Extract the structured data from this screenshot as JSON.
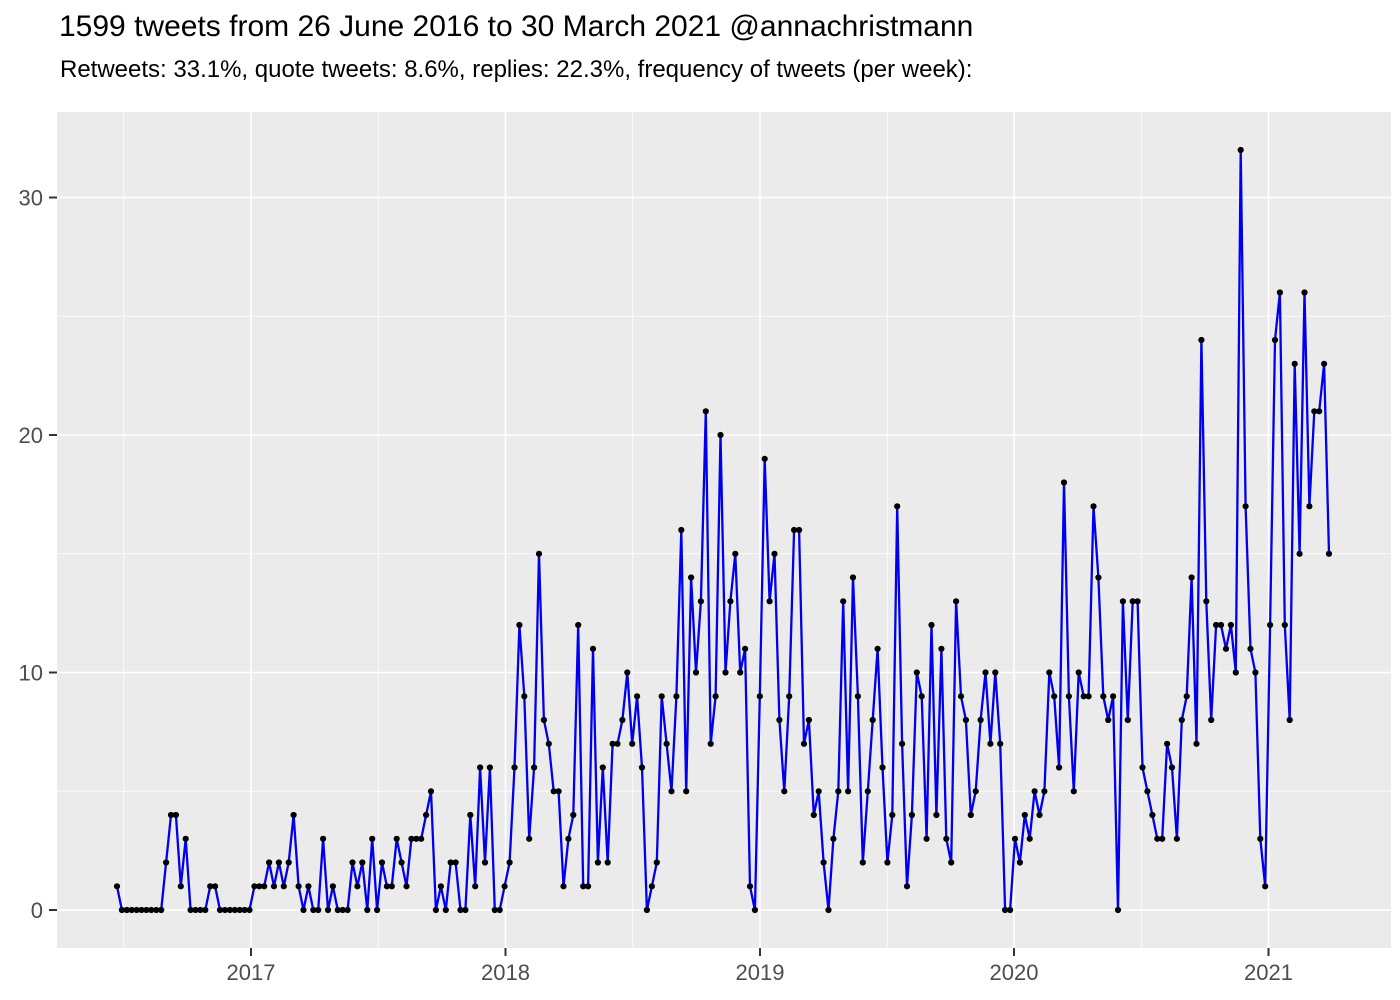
{
  "header": {
    "title": "1599 tweets from 26 June 2016 to 30 March 2021 @annachristmann",
    "subtitle": "Retweets: 33.1%, quote tweets: 8.6%, replies: 22.3%, frequency of tweets (per week):"
  },
  "chart_data": {
    "type": "line",
    "title": "1599 tweets from 26 June 2016 to 30 March 2021 @annachristmann",
    "subtitle": "Retweets: 33.1%, quote tweets: 8.6%, replies: 22.3%, frequency of tweets (per week):",
    "xlabel": "",
    "ylabel": "",
    "x_start_date": "26 June 2016",
    "x_end_date": "30 March 2021",
    "x_tick_labels": [
      "2017",
      "2018",
      "2019",
      "2020",
      "2021"
    ],
    "y_ticks": [
      0,
      10,
      20,
      30
    ],
    "y_minor_ticks": [
      5,
      15,
      25
    ],
    "ylim": [
      -1.6,
      33.6
    ],
    "grid": "on",
    "legend_position": "none",
    "series": [
      {
        "name": "tweets per week",
        "values": [
          1,
          0,
          0,
          0,
          0,
          0,
          0,
          0,
          0,
          0,
          2,
          4,
          4,
          1,
          3,
          0,
          0,
          0,
          0,
          1,
          1,
          0,
          0,
          0,
          0,
          0,
          0,
          0,
          1,
          1,
          1,
          2,
          1,
          2,
          1,
          2,
          4,
          1,
          0,
          1,
          0,
          0,
          3,
          0,
          1,
          0,
          0,
          0,
          2,
          1,
          2,
          0,
          3,
          0,
          2,
          1,
          1,
          3,
          2,
          1,
          3,
          3,
          3,
          4,
          5,
          0,
          1,
          0,
          2,
          2,
          0,
          0,
          4,
          1,
          6,
          2,
          6,
          0,
          0,
          1,
          2,
          6,
          12,
          9,
          3,
          6,
          15,
          8,
          7,
          5,
          5,
          1,
          3,
          4,
          12,
          1,
          1,
          11,
          2,
          6,
          2,
          7,
          7,
          8,
          10,
          7,
          9,
          6,
          0,
          1,
          2,
          9,
          7,
          5,
          9,
          16,
          5,
          14,
          10,
          13,
          21,
          7,
          9,
          20,
          10,
          13,
          15,
          10,
          11,
          1,
          0,
          9,
          19,
          13,
          15,
          8,
          5,
          9,
          16,
          16,
          7,
          8,
          4,
          5,
          2,
          0,
          3,
          5,
          13,
          5,
          14,
          9,
          2,
          5,
          8,
          11,
          6,
          2,
          4,
          17,
          7,
          1,
          4,
          10,
          9,
          3,
          12,
          4,
          11,
          3,
          2,
          13,
          9,
          8,
          4,
          5,
          8,
          10,
          7,
          10,
          7,
          0,
          0,
          3,
          2,
          4,
          3,
          5,
          4,
          5,
          10,
          9,
          6,
          18,
          9,
          5,
          10,
          9,
          9,
          17,
          14,
          9,
          8,
          9,
          0,
          13,
          8,
          13,
          13,
          6,
          5,
          4,
          3,
          3,
          7,
          6,
          3,
          8,
          9,
          14,
          7,
          24,
          13,
          8,
          12,
          12,
          11,
          12,
          10,
          32,
          17,
          11,
          10,
          3,
          1,
          12,
          24,
          26,
          12,
          8,
          23,
          15,
          26,
          17,
          21,
          21,
          23,
          15
        ]
      }
    ],
    "colors": {
      "line": "#0000EE",
      "point": "#000000",
      "panel_background": "#EBEBEB",
      "gridline": "#FFFFFF",
      "axis_text": "#4D4D4D",
      "tick_mark": "#333333",
      "title_text": "#000000",
      "page_background": "#FFFFFF"
    }
  }
}
